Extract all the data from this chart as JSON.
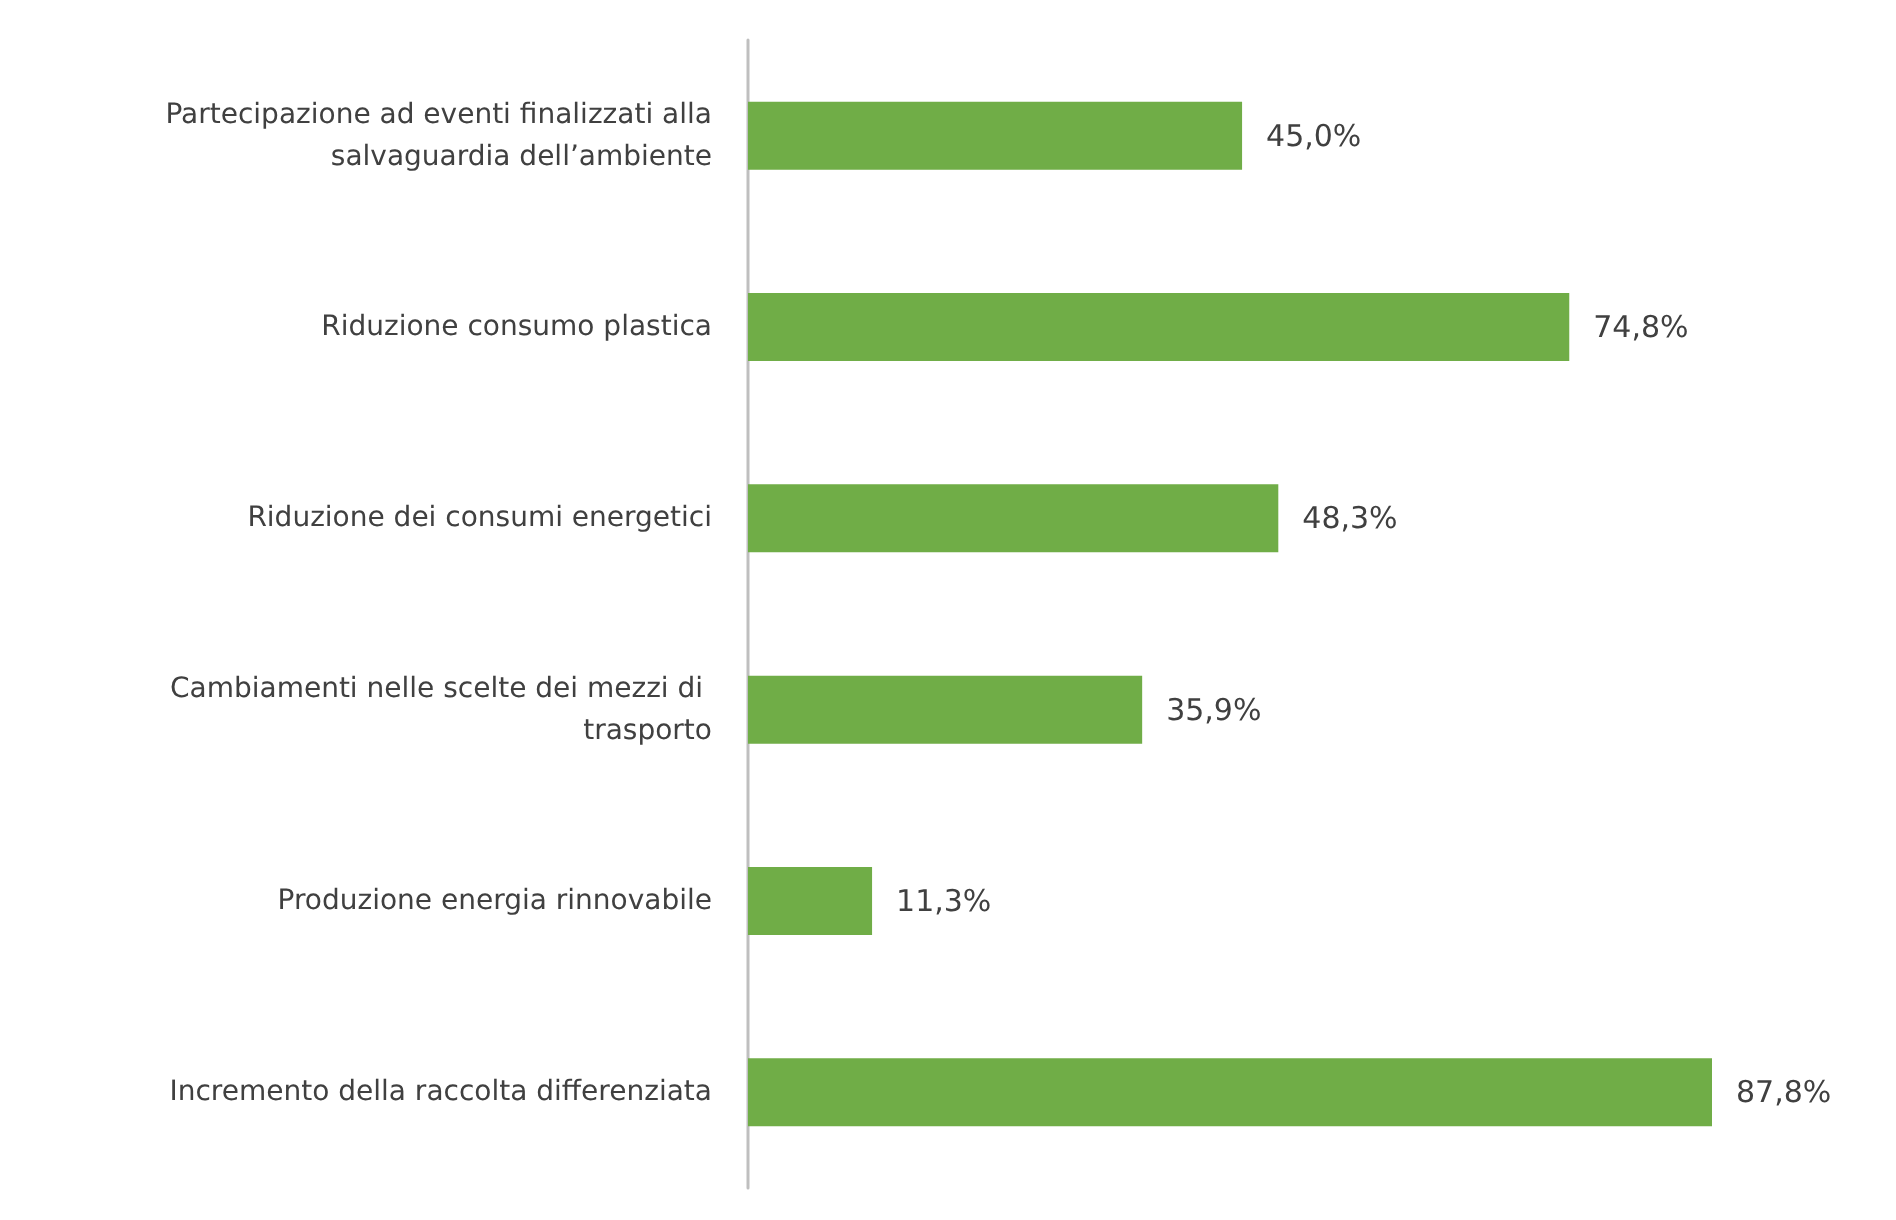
{
  "chart_data": {
    "type": "bar",
    "orientation": "horizontal",
    "categories": [
      "Partecipazione ad eventi finalizzati alla salvaguardia dell’ambiente",
      "Riduzione consumo plastica",
      "Riduzione dei consumi energetici",
      "Cambiamenti nelle scelte dei mezzi di trasporto",
      "Produzione energia rinnovabile",
      "Incremento della raccolta differenziata"
    ],
    "values": [
      45.0,
      74.8,
      48.3,
      35.9,
      11.3,
      87.8
    ],
    "value_labels": [
      "45,0%",
      "74,8%",
      "48,3%",
      "35,9%",
      "11,3%",
      "87,8%"
    ],
    "color": "#70ad47"
  }
}
